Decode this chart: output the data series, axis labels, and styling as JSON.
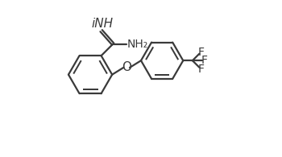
{
  "bg_color": "#ffffff",
  "line_color": "#3a3a3a",
  "text_color": "#3a3a3a",
  "line_width": 1.6,
  "font_size": 10,
  "R1cx": 0.175,
  "R1cy": 0.525,
  "R1r": 0.14,
  "R2cx": 0.635,
  "R2cy": 0.615,
  "R2r": 0.135,
  "imine_label": "iNH",
  "nh2_label": "NH₂",
  "o_label": "O",
  "f_labels": [
    "F",
    "F",
    "F"
  ]
}
